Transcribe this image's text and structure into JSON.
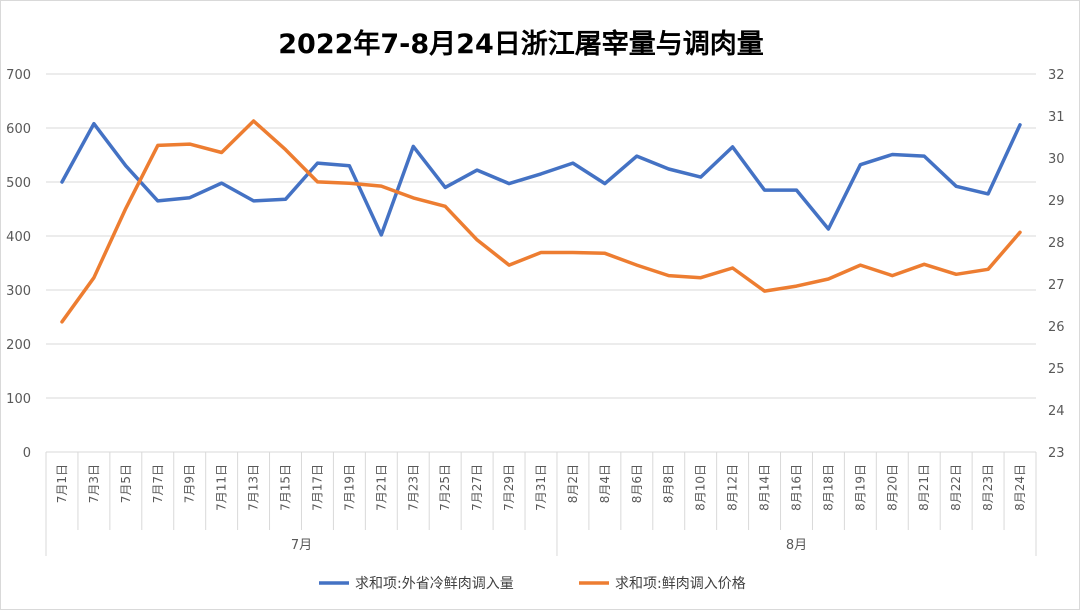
{
  "chart_data": {
    "type": "line",
    "title": "2022年7-8月24日浙江屠宰量与调肉量",
    "categories": [
      "7月1日",
      "7月3日",
      "7月5日",
      "7月7日",
      "7月9日",
      "7月11日",
      "7月13日",
      "7月15日",
      "7月17日",
      "7月19日",
      "7月21日",
      "7月23日",
      "7月25日",
      "7月27日",
      "7月29日",
      "7月31日",
      "8月2日",
      "8月4日",
      "8月6日",
      "8月8日",
      "8月10日",
      "8月12日",
      "8月14日",
      "8月16日",
      "8月18日",
      "8月19日",
      "8月20日",
      "8月21日",
      "8月22日",
      "8月23日",
      "8月24日"
    ],
    "groups": [
      {
        "label": "7月",
        "start": 0,
        "end": 15
      },
      {
        "label": "8月",
        "start": 16,
        "end": 30
      }
    ],
    "series": [
      {
        "name": "求和项:外省冷鲜肉调入量",
        "axis": "left",
        "color": "#4472C4",
        "values": [
          500,
          608,
          530,
          465,
          471,
          498,
          465,
          468,
          535,
          530,
          402,
          566,
          490,
          522,
          497,
          515,
          535,
          497,
          548,
          524,
          509,
          565,
          485,
          485,
          413,
          532,
          551,
          548,
          492,
          478,
          606
        ]
      },
      {
        "name": "求和项:鲜肉调入价格",
        "axis": "right",
        "color": "#ED7D31",
        "values": [
          26.1,
          27.15,
          28.8,
          30.3,
          30.33,
          30.13,
          30.88,
          30.2,
          29.43,
          29.4,
          29.33,
          29.05,
          28.85,
          28.05,
          27.45,
          27.75,
          27.75,
          27.73,
          27.45,
          27.2,
          27.15,
          27.38,
          26.83,
          26.95,
          27.12,
          27.45,
          27.2,
          27.47,
          27.23,
          27.35,
          28.23
        ]
      }
    ],
    "left_axis": {
      "min": 0,
      "max": 700,
      "step": 100,
      "ticks": [
        "0",
        "100",
        "200",
        "300",
        "400",
        "500",
        "600",
        "700"
      ]
    },
    "right_axis": {
      "min": 23,
      "max": 32,
      "step": 1,
      "ticks": [
        "23",
        "24",
        "25",
        "26",
        "27",
        "28",
        "29",
        "30",
        "31",
        "32"
      ]
    },
    "grid": true,
    "legend_position": "bottom"
  }
}
